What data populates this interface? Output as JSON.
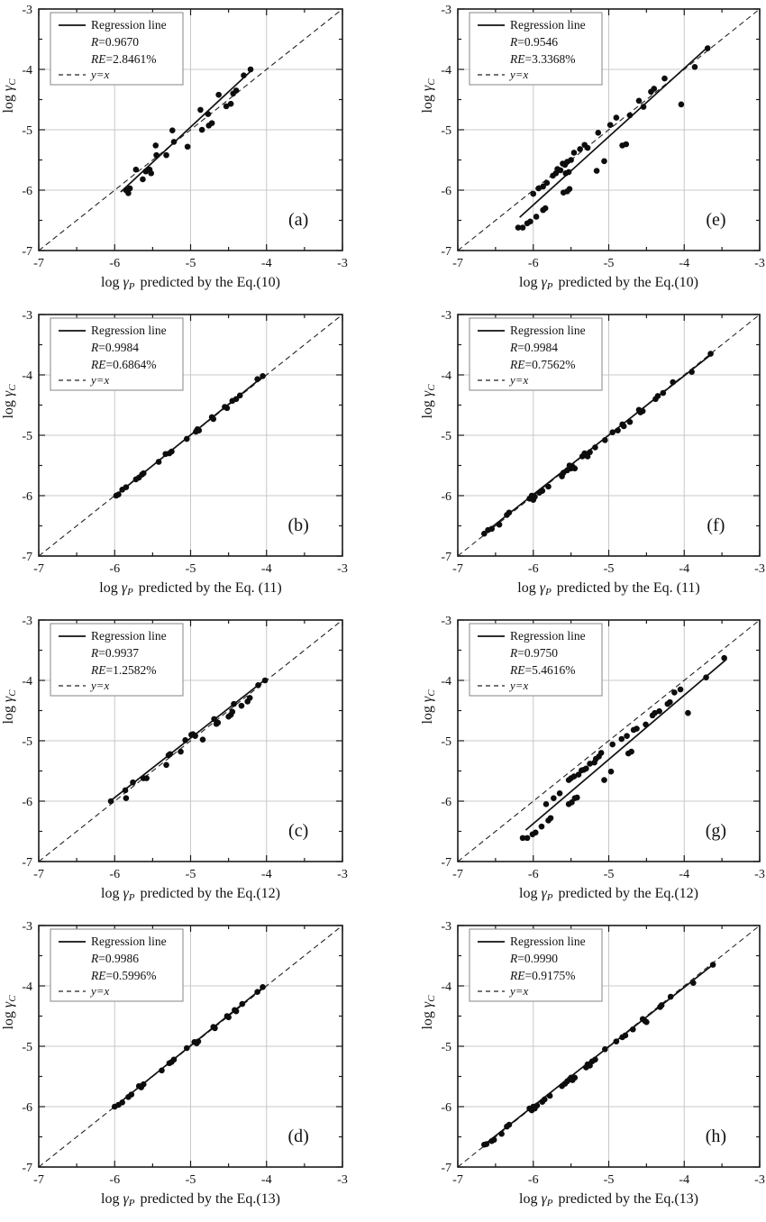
{
  "figure": {
    "description": "Eight scatter panels comparing calculated vs predicted log activity coefficients",
    "panels_order": [
      "(a)",
      "(e)",
      "(b)",
      "(f)",
      "(c)",
      "(g)",
      "(d)",
      "(h)"
    ]
  },
  "shared": {
    "ylabel": {
      "log": "log ",
      "gamma": "γ",
      "sub": "C"
    },
    "xlabel": {
      "log": "log ",
      "gamma": "γ",
      "sub": "P",
      "rest": "predicted by the "
    },
    "legend": {
      "regression_label": "Regression line",
      "r_symbol": "R",
      "re_symbol": "RE",
      "yx_label": "y=x"
    },
    "axis": {
      "xlim": [
        -7,
        -3
      ],
      "ylim": [
        -7,
        -3
      ],
      "major_ticks": [
        -7,
        -6,
        -5,
        -4,
        -3
      ],
      "minor_ticks": [
        -6.5,
        -5.5,
        -4.5,
        -3.5
      ],
      "grid_positions": [
        -6,
        -5,
        -4
      ],
      "tick_labels": [
        "-7",
        "-6",
        "-5",
        "-4",
        "-3"
      ]
    },
    "colors": {
      "point": "#0d0d0d",
      "regression_line": "#111111",
      "identity_line": "#222222",
      "gridline": "#c8c8c8",
      "frame": "#1a1a1a",
      "legend_border": "#999999",
      "background": "#ffffff"
    }
  },
  "chart_data": [
    {
      "type": "scatter",
      "panel_label": "(a)",
      "equation": "Eq.(10)",
      "R": "0.9670",
      "RE": "2.8461%",
      "regression": [
        [
          -5.92,
          -6.03
        ],
        [
          -4.2,
          -4.02
        ]
      ],
      "points": [
        [
          -5.85,
          -6.0
        ],
        [
          -5.82,
          -6.05
        ],
        [
          -5.8,
          -5.97
        ],
        [
          -5.72,
          -5.66
        ],
        [
          -5.63,
          -5.82
        ],
        [
          -5.59,
          -5.69
        ],
        [
          -5.54,
          -5.66
        ],
        [
          -5.52,
          -5.72
        ],
        [
          -5.46,
          -5.26
        ],
        [
          -5.45,
          -5.42
        ],
        [
          -5.32,
          -5.42
        ],
        [
          -5.24,
          -5.01
        ],
        [
          -5.22,
          -5.2
        ],
        [
          -5.04,
          -5.28
        ],
        [
          -4.87,
          -4.67
        ],
        [
          -4.85,
          -5.0
        ],
        [
          -4.77,
          -4.74
        ],
        [
          -4.76,
          -4.93
        ],
        [
          -4.72,
          -4.89
        ],
        [
          -4.63,
          -4.42
        ],
        [
          -4.53,
          -4.61
        ],
        [
          -4.47,
          -4.57
        ],
        [
          -4.44,
          -4.4
        ],
        [
          -4.4,
          -4.35
        ],
        [
          -4.3,
          -4.1
        ],
        [
          -4.21,
          -4.0
        ]
      ]
    },
    {
      "type": "scatter",
      "panel_label": "(e)",
      "equation": "Eq.(10)",
      "R": "0.9546",
      "RE": "3.3368%",
      "regression": [
        [
          -6.18,
          -6.45
        ],
        [
          -3.67,
          -3.61
        ]
      ],
      "points": [
        [
          -6.2,
          -6.62
        ],
        [
          -6.14,
          -6.62
        ],
        [
          -6.08,
          -6.55
        ],
        [
          -6.04,
          -6.52
        ],
        [
          -5.96,
          -6.44
        ],
        [
          -5.87,
          -6.33
        ],
        [
          -5.84,
          -6.3
        ],
        [
          -6.0,
          -6.06
        ],
        [
          -5.93,
          -5.97
        ],
        [
          -5.87,
          -5.94
        ],
        [
          -5.82,
          -5.88
        ],
        [
          -5.74,
          -5.76
        ],
        [
          -5.7,
          -5.72
        ],
        [
          -5.68,
          -5.65
        ],
        [
          -5.64,
          -5.67
        ],
        [
          -5.61,
          -5.56
        ],
        [
          -5.58,
          -5.58
        ],
        [
          -5.55,
          -5.53
        ],
        [
          -5.57,
          -5.72
        ],
        [
          -5.53,
          -5.7
        ],
        [
          -5.5,
          -5.5
        ],
        [
          -5.46,
          -5.38
        ],
        [
          -5.6,
          -6.04
        ],
        [
          -5.55,
          -6.02
        ],
        [
          -5.52,
          -5.98
        ],
        [
          -5.38,
          -5.32
        ],
        [
          -5.32,
          -5.25
        ],
        [
          -5.28,
          -5.3
        ],
        [
          -5.16,
          -5.68
        ],
        [
          -5.14,
          -5.05
        ],
        [
          -5.06,
          -5.52
        ],
        [
          -4.98,
          -4.92
        ],
        [
          -4.9,
          -4.8
        ],
        [
          -4.82,
          -5.26
        ],
        [
          -4.77,
          -5.24
        ],
        [
          -4.72,
          -4.76
        ],
        [
          -4.6,
          -4.52
        ],
        [
          -4.54,
          -4.62
        ],
        [
          -4.44,
          -4.37
        ],
        [
          -4.4,
          -4.32
        ],
        [
          -4.26,
          -4.15
        ],
        [
          -4.04,
          -4.58
        ],
        [
          -3.86,
          -3.96
        ],
        [
          -3.69,
          -3.65
        ]
      ]
    },
    {
      "type": "scatter",
      "panel_label": "(b)",
      "equation": "Eq. (11)",
      "R": "0.9984",
      "RE": "0.6864%",
      "regression": [
        [
          -6.0,
          -6.01
        ],
        [
          -4.03,
          -4.01
        ]
      ],
      "points": [
        [
          -5.98,
          -6.0
        ],
        [
          -5.95,
          -5.98
        ],
        [
          -5.9,
          -5.9
        ],
        [
          -5.85,
          -5.86
        ],
        [
          -5.72,
          -5.73
        ],
        [
          -5.68,
          -5.7
        ],
        [
          -5.64,
          -5.65
        ],
        [
          -5.62,
          -5.63
        ],
        [
          -5.42,
          -5.44
        ],
        [
          -5.33,
          -5.31
        ],
        [
          -5.28,
          -5.3
        ],
        [
          -5.25,
          -5.27
        ],
        [
          -5.05,
          -5.06
        ],
        [
          -4.93,
          -4.94
        ],
        [
          -4.91,
          -4.9
        ],
        [
          -4.89,
          -4.92
        ],
        [
          -4.72,
          -4.7
        ],
        [
          -4.7,
          -4.73
        ],
        [
          -4.55,
          -4.53
        ],
        [
          -4.52,
          -4.55
        ],
        [
          -4.45,
          -4.43
        ],
        [
          -4.4,
          -4.4
        ],
        [
          -4.35,
          -4.34
        ],
        [
          -4.12,
          -4.07
        ],
        [
          -4.05,
          -4.02
        ]
      ]
    },
    {
      "type": "scatter",
      "panel_label": "(f)",
      "equation": "Eq. (11)",
      "R": "0.9984",
      "RE": "0.7562%",
      "regression": [
        [
          -6.67,
          -6.64
        ],
        [
          -3.64,
          -3.66
        ]
      ],
      "points": [
        [
          -6.65,
          -6.63
        ],
        [
          -6.6,
          -6.57
        ],
        [
          -6.55,
          -6.55
        ],
        [
          -6.45,
          -6.48
        ],
        [
          -6.35,
          -6.32
        ],
        [
          -6.32,
          -6.28
        ],
        [
          -6.05,
          -6.05
        ],
        [
          -6.02,
          -6.0
        ],
        [
          -6.0,
          -6.07
        ],
        [
          -5.98,
          -6.02
        ],
        [
          -5.92,
          -5.95
        ],
        [
          -5.88,
          -5.92
        ],
        [
          -5.8,
          -5.85
        ],
        [
          -5.62,
          -5.68
        ],
        [
          -5.6,
          -5.62
        ],
        [
          -5.55,
          -5.58
        ],
        [
          -5.52,
          -5.5
        ],
        [
          -5.5,
          -5.55
        ],
        [
          -5.48,
          -5.52
        ],
        [
          -5.45,
          -5.55
        ],
        [
          -5.35,
          -5.35
        ],
        [
          -5.32,
          -5.3
        ],
        [
          -5.3,
          -5.33
        ],
        [
          -5.28,
          -5.35
        ],
        [
          -5.25,
          -5.28
        ],
        [
          -5.18,
          -5.2
        ],
        [
          -5.05,
          -5.08
        ],
        [
          -4.95,
          -4.95
        ],
        [
          -4.88,
          -4.92
        ],
        [
          -4.82,
          -4.82
        ],
        [
          -4.8,
          -4.85
        ],
        [
          -4.72,
          -4.78
        ],
        [
          -4.6,
          -4.58
        ],
        [
          -4.58,
          -4.62
        ],
        [
          -4.55,
          -4.6
        ],
        [
          -4.38,
          -4.4
        ],
        [
          -4.35,
          -4.35
        ],
        [
          -4.28,
          -4.3
        ],
        [
          -4.15,
          -4.12
        ],
        [
          -3.9,
          -3.95
        ],
        [
          -3.65,
          -3.65
        ]
      ]
    },
    {
      "type": "scatter",
      "panel_label": "(c)",
      "equation": "Eq.(12)",
      "R": "0.9937",
      "RE": "1.2582%",
      "regression": [
        [
          -6.07,
          -6.01
        ],
        [
          -4.0,
          -3.97
        ]
      ],
      "points": [
        [
          -6.05,
          -6.0
        ],
        [
          -5.86,
          -5.82
        ],
        [
          -5.85,
          -5.95
        ],
        [
          -5.76,
          -5.69
        ],
        [
          -5.62,
          -5.62
        ],
        [
          -5.58,
          -5.62
        ],
        [
          -5.32,
          -5.4
        ],
        [
          -5.29,
          -5.24
        ],
        [
          -5.27,
          -5.22
        ],
        [
          -5.13,
          -5.18
        ],
        [
          -5.07,
          -4.99
        ],
        [
          -4.99,
          -4.9
        ],
        [
          -4.97,
          -4.89
        ],
        [
          -4.94,
          -4.92
        ],
        [
          -4.84,
          -4.98
        ],
        [
          -4.69,
          -4.64
        ],
        [
          -4.66,
          -4.72
        ],
        [
          -4.64,
          -4.7
        ],
        [
          -4.5,
          -4.6
        ],
        [
          -4.47,
          -4.57
        ],
        [
          -4.45,
          -4.52
        ],
        [
          -4.43,
          -4.39
        ],
        [
          -4.33,
          -4.42
        ],
        [
          -4.25,
          -4.35
        ],
        [
          -4.22,
          -4.29
        ],
        [
          -4.11,
          -4.08
        ],
        [
          -4.02,
          -4.0
        ]
      ]
    },
    {
      "type": "scatter",
      "panel_label": "(g)",
      "equation": "Eq.(12)",
      "R": "0.9750",
      "RE": "5.4616%",
      "regression": [
        [
          -6.1,
          -6.48
        ],
        [
          -3.44,
          -3.65
        ]
      ],
      "points": [
        [
          -6.14,
          -6.61
        ],
        [
          -6.08,
          -6.61
        ],
        [
          -6.01,
          -6.55
        ],
        [
          -5.97,
          -6.52
        ],
        [
          -5.89,
          -6.42
        ],
        [
          -5.8,
          -6.32
        ],
        [
          -5.77,
          -6.28
        ],
        [
          -5.83,
          -6.05
        ],
        [
          -5.73,
          -5.95
        ],
        [
          -5.65,
          -5.87
        ],
        [
          -5.53,
          -6.05
        ],
        [
          -5.49,
          -6.02
        ],
        [
          -5.45,
          -5.95
        ],
        [
          -5.42,
          -5.94
        ],
        [
          -5.53,
          -5.65
        ],
        [
          -5.5,
          -5.62
        ],
        [
          -5.46,
          -5.59
        ],
        [
          -5.4,
          -5.56
        ],
        [
          -5.36,
          -5.49
        ],
        [
          -5.33,
          -5.48
        ],
        [
          -5.3,
          -5.46
        ],
        [
          -5.25,
          -5.38
        ],
        [
          -5.19,
          -5.36
        ],
        [
          -5.17,
          -5.3
        ],
        [
          -5.13,
          -5.26
        ],
        [
          -5.1,
          -5.2
        ],
        [
          -5.06,
          -5.65
        ],
        [
          -4.97,
          -5.51
        ],
        [
          -4.95,
          -5.06
        ],
        [
          -4.83,
          -4.97
        ],
        [
          -4.76,
          -4.92
        ],
        [
          -4.74,
          -5.21
        ],
        [
          -4.7,
          -5.18
        ],
        [
          -4.67,
          -4.82
        ],
        [
          -4.63,
          -4.8
        ],
        [
          -4.51,
          -4.73
        ],
        [
          -4.42,
          -4.58
        ],
        [
          -4.39,
          -4.54
        ],
        [
          -4.33,
          -4.51
        ],
        [
          -4.22,
          -4.39
        ],
        [
          -4.19,
          -4.36
        ],
        [
          -4.13,
          -4.2
        ],
        [
          -4.05,
          -4.15
        ],
        [
          -3.95,
          -4.54
        ],
        [
          -3.71,
          -3.95
        ],
        [
          -3.47,
          -3.63
        ]
      ]
    },
    {
      "type": "scatter",
      "panel_label": "(d)",
      "equation": "Eq.(13)",
      "R": "0.9986",
      "RE": "0.5996%",
      "regression": [
        [
          -6.01,
          -6.01
        ],
        [
          -4.02,
          -4.0
        ]
      ],
      "points": [
        [
          -6.0,
          -6.0
        ],
        [
          -5.95,
          -5.97
        ],
        [
          -5.9,
          -5.93
        ],
        [
          -5.82,
          -5.84
        ],
        [
          -5.78,
          -5.8
        ],
        [
          -5.68,
          -5.66
        ],
        [
          -5.65,
          -5.68
        ],
        [
          -5.62,
          -5.63
        ],
        [
          -5.38,
          -5.4
        ],
        [
          -5.28,
          -5.28
        ],
        [
          -5.25,
          -5.26
        ],
        [
          -5.22,
          -5.22
        ],
        [
          -5.05,
          -5.03
        ],
        [
          -4.95,
          -4.93
        ],
        [
          -4.92,
          -4.95
        ],
        [
          -4.9,
          -4.92
        ],
        [
          -4.7,
          -4.68
        ],
        [
          -4.68,
          -4.7
        ],
        [
          -4.52,
          -4.5
        ],
        [
          -4.5,
          -4.52
        ],
        [
          -4.42,
          -4.4
        ],
        [
          -4.4,
          -4.42
        ],
        [
          -4.32,
          -4.3
        ],
        [
          -4.12,
          -4.1
        ],
        [
          -4.05,
          -4.02
        ]
      ]
    },
    {
      "type": "scatter",
      "panel_label": "(h)",
      "equation": "Eq.(13)",
      "R": "0.9990",
      "RE": "0.9175%",
      "regression": [
        [
          -6.66,
          -6.64
        ],
        [
          -3.6,
          -3.63
        ]
      ],
      "points": [
        [
          -6.65,
          -6.63
        ],
        [
          -6.62,
          -6.62
        ],
        [
          -6.55,
          -6.57
        ],
        [
          -6.52,
          -6.55
        ],
        [
          -6.42,
          -6.45
        ],
        [
          -6.35,
          -6.33
        ],
        [
          -6.32,
          -6.3
        ],
        [
          -6.05,
          -6.03
        ],
        [
          -6.02,
          -6.06
        ],
        [
          -6.0,
          -6.0
        ],
        [
          -5.98,
          -6.03
        ],
        [
          -5.95,
          -5.98
        ],
        [
          -5.88,
          -5.92
        ],
        [
          -5.85,
          -5.88
        ],
        [
          -5.78,
          -5.82
        ],
        [
          -5.62,
          -5.66
        ],
        [
          -5.58,
          -5.62
        ],
        [
          -5.55,
          -5.58
        ],
        [
          -5.52,
          -5.55
        ],
        [
          -5.5,
          -5.52
        ],
        [
          -5.48,
          -5.56
        ],
        [
          -5.45,
          -5.52
        ],
        [
          -5.3,
          -5.35
        ],
        [
          -5.28,
          -5.3
        ],
        [
          -5.25,
          -5.32
        ],
        [
          -5.22,
          -5.25
        ],
        [
          -5.18,
          -5.22
        ],
        [
          -5.05,
          -5.05
        ],
        [
          -4.9,
          -4.92
        ],
        [
          -4.82,
          -4.85
        ],
        [
          -4.78,
          -4.82
        ],
        [
          -4.68,
          -4.72
        ],
        [
          -4.55,
          -4.55
        ],
        [
          -4.52,
          -4.58
        ],
        [
          -4.5,
          -4.6
        ],
        [
          -4.32,
          -4.35
        ],
        [
          -4.3,
          -4.32
        ],
        [
          -4.18,
          -4.18
        ],
        [
          -3.88,
          -3.95
        ],
        [
          -3.62,
          -3.65
        ]
      ]
    }
  ]
}
